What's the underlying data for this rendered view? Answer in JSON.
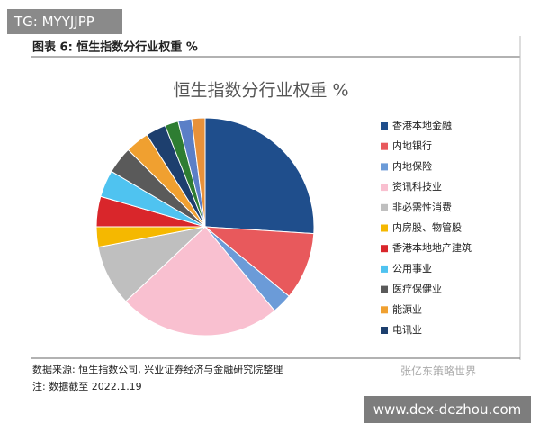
{
  "header": {
    "tag": "TG: MYYJJPP",
    "caption": "图表 6:  恒生指数分行业权重 %"
  },
  "footer": {
    "source": "数据来源: 恒生指数公司, 兴业证券经济与金融研究院整理",
    "note": "注: 数据截至 2022.1.19",
    "watermark": "张亿东策略世界",
    "site": "www.dex-dezhou.com"
  },
  "chart_data": {
    "type": "pie",
    "title": "恒生指数分行业权重 %",
    "categories": [
      "香港本地金融",
      "内地银行",
      "内地保险",
      "资讯科技业",
      "非必需性消费",
      "内房股、物管股",
      "香港本地地产建筑",
      "公用事业",
      "医疗保健业",
      "能源业",
      "电讯业",
      null,
      null,
      null
    ],
    "values": [
      26,
      10,
      3,
      24,
      9,
      3,
      4.5,
      4,
      4,
      3.5,
      3,
      2,
      2,
      2
    ],
    "colors": [
      "#1f4e8c",
      "#e8595c",
      "#6b9bd8",
      "#f9c0d0",
      "#bfbfbf",
      "#f5b800",
      "#d9262b",
      "#4fc3f0",
      "#5a5a5a",
      "#f0a030",
      "#1d3f6e",
      "#2e7d32",
      "#5b7fc7",
      "#e8913a"
    ]
  }
}
